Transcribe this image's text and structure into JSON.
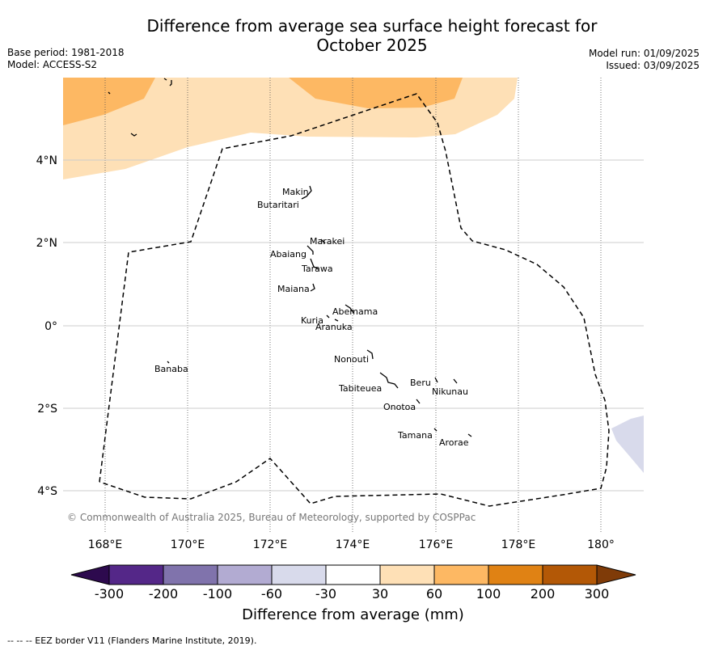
{
  "title": "Difference from average sea surface height forecast for\nOctober 2025",
  "title_line1": "Difference from average sea surface height forecast for",
  "title_line2": "October 2025",
  "base_period": "Base period: 1981-2018",
  "model": "Model: ACCESS-S2",
  "model_run": "Model run: 01/09/2025",
  "issued": "Issued: 03/09/2025",
  "copyright": "© Commonwealth of Australia 2025, Bureau of Meteorology, supported by COSPPac",
  "lon_ticks": [
    "168°E",
    "170°E",
    "172°E",
    "174°E",
    "176°E",
    "178°E",
    "180°"
  ],
  "lat_ticks": [
    "4°N",
    "2°N",
    "0°",
    "2°S",
    "4°S"
  ],
  "places": [
    {
      "name": "Makin"
    },
    {
      "name": "Butaritari"
    },
    {
      "name": "Marakei"
    },
    {
      "name": "Abaiang"
    },
    {
      "name": "Tarawa"
    },
    {
      "name": "Maiana"
    },
    {
      "name": "Abemama"
    },
    {
      "name": "Kuria"
    },
    {
      "name": "Aranuka"
    },
    {
      "name": "Nonouti"
    },
    {
      "name": "Banaba"
    },
    {
      "name": "Beru"
    },
    {
      "name": "Nikunau"
    },
    {
      "name": "Tabiteuea"
    },
    {
      "name": "Onotoa"
    },
    {
      "name": "Tamana"
    },
    {
      "name": "Arorae"
    }
  ],
  "colorbar": {
    "label": "Difference from average (mm)",
    "ticks": [
      "-300",
      "-200",
      "-100",
      "-60",
      "-30",
      "30",
      "60",
      "100",
      "200",
      "300"
    ],
    "colors": [
      "#2d0a4e",
      "#542788",
      "#8073ac",
      "#b2abd2",
      "#d8daeb",
      "#ffffff",
      "#fee0b6",
      "#fdb863",
      "#e08214",
      "#b35806",
      "#7f3b08"
    ]
  },
  "footnote": "--  --  -- EEZ border V11 (Flanders Marine Institute, 2019).",
  "colors": {
    "band_30_60": "#fee0b6",
    "band_60_100": "#fdb863",
    "band_neg_30_60": "#d8daeb"
  }
}
